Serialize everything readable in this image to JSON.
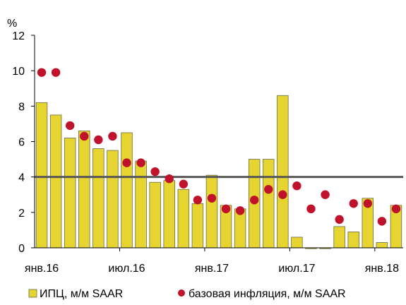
{
  "chart_data": {
    "type": "bar",
    "ylabel": "%",
    "ylim": [
      0,
      12
    ],
    "yticks": [
      0,
      2,
      4,
      6,
      8,
      10,
      12
    ],
    "x_tick_labels": [
      "янв.16",
      "июл.16",
      "янв.17",
      "июл.17",
      "янв.18"
    ],
    "reference_line": {
      "value": 4.0
    },
    "categories": [
      "янв.16",
      "фев.16",
      "мар.16",
      "апр.16",
      "май.16",
      "июн.16",
      "июл.16",
      "авг.16",
      "сен.16",
      "окт.16",
      "ноя.16",
      "дек.16",
      "янв.17",
      "фев.17",
      "мар.17",
      "апр.17",
      "май.17",
      "июн.17",
      "июл.17",
      "авг.17",
      "сен.17",
      "окт.17",
      "ноя.17",
      "дек.17",
      "янв.18",
      "фев.18"
    ],
    "series": [
      {
        "name": "ИПЦ, м/м SAAR",
        "type": "bar",
        "color": "#e6d431",
        "values": [
          8.2,
          7.5,
          6.2,
          6.6,
          5.6,
          5.5,
          6.5,
          4.9,
          3.7,
          3.8,
          3.3,
          2.5,
          4.1,
          2.4,
          2.2,
          5.0,
          5.0,
          8.6,
          0.6,
          -0.05,
          -0.05,
          1.2,
          0.9,
          2.8,
          0.3,
          2.4
        ]
      },
      {
        "name": "базовая инфляция, м/м SAAR",
        "type": "scatter",
        "color": "#c0122b",
        "values": [
          9.9,
          9.9,
          6.9,
          6.3,
          6.1,
          6.3,
          4.8,
          4.8,
          4.3,
          3.9,
          3.6,
          2.7,
          2.8,
          2.2,
          2.1,
          2.7,
          3.3,
          3.0,
          3.5,
          2.2,
          3.0,
          1.6,
          2.5,
          2.5,
          1.5,
          2.2
        ]
      }
    ],
    "legend": {
      "position": "bottom",
      "items": [
        {
          "label": "ИПЦ, м/м SAAR",
          "marker": "square",
          "color": "#e6d431"
        },
        {
          "label": "базовая инфляция, м/м SAAR",
          "marker": "circle",
          "color": "#c0122b"
        }
      ]
    },
    "colors": {
      "axis": "#000000",
      "bar_outline": "#6b6b4a",
      "reference_line": "#575757"
    }
  }
}
